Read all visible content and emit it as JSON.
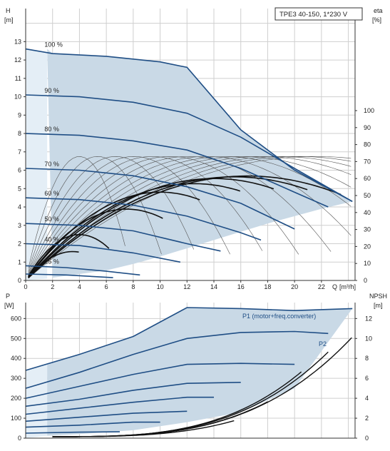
{
  "chart_data": [
    {
      "type": "line",
      "title_box": "TPE3 40-150, 1*230 V",
      "left_axis": {
        "name": "H",
        "unit": "[m]",
        "ticks": [
          0,
          1,
          2,
          3,
          4,
          5,
          6,
          7,
          8,
          9,
          10,
          11,
          12,
          13
        ],
        "range": [
          0,
          14.8
        ]
      },
      "right_axis": {
        "name": "eta",
        "unit": "[%]",
        "ticks": [
          0,
          10,
          20,
          30,
          40,
          50,
          60,
          70,
          80,
          90,
          100
        ],
        "range": [
          0,
          100
        ]
      },
      "x_axis": {
        "name": "Q",
        "unit": "[m³/h]",
        "ticks": [
          0,
          2,
          4,
          6,
          8,
          10,
          12,
          14,
          16,
          18,
          20,
          22
        ],
        "range": [
          0,
          24.5
        ]
      },
      "series": [
        {
          "name": "100 %",
          "points": [
            [
              0,
              12.6
            ],
            [
              2,
              12.35
            ],
            [
              6,
              12.2
            ],
            [
              10,
              11.9
            ],
            [
              12,
              11.6
            ],
            [
              16,
              8.2
            ],
            [
              20,
              6.0
            ],
            [
              24.3,
              4.3
            ]
          ]
        },
        {
          "name": "90 %",
          "points": [
            [
              0,
              10.1
            ],
            [
              4,
              10.0
            ],
            [
              8,
              9.7
            ],
            [
              12,
              9.1
            ],
            [
              16,
              7.8
            ],
            [
              20,
              6.1
            ],
            [
              24.3,
              4.3
            ]
          ]
        },
        {
          "name": "80 %",
          "points": [
            [
              0,
              8.0
            ],
            [
              4,
              7.9
            ],
            [
              8,
              7.6
            ],
            [
              12,
              7.1
            ],
            [
              16,
              6.1
            ],
            [
              20,
              4.8
            ],
            [
              22.5,
              4.0
            ]
          ]
        },
        {
          "name": "70 %",
          "points": [
            [
              0,
              6.1
            ],
            [
              4,
              6.0
            ],
            [
              8,
              5.7
            ],
            [
              12,
              5.1
            ],
            [
              16,
              4.2
            ],
            [
              20,
              2.8
            ]
          ]
        },
        {
          "name": "60 %",
          "points": [
            [
              0,
              4.5
            ],
            [
              4,
              4.4
            ],
            [
              8,
              4.1
            ],
            [
              12,
              3.5
            ],
            [
              16,
              2.6
            ],
            [
              17.5,
              2.2
            ]
          ]
        },
        {
          "name": "50 %",
          "points": [
            [
              0,
              3.1
            ],
            [
              4,
              3.0
            ],
            [
              8,
              2.7
            ],
            [
              12,
              2.0
            ],
            [
              14.5,
              1.6
            ]
          ]
        },
        {
          "name": "40 %",
          "points": [
            [
              0,
              2.0
            ],
            [
              4,
              1.9
            ],
            [
              8,
              1.5
            ],
            [
              11.5,
              1.0
            ]
          ]
        },
        {
          "name": "25 %",
          "points": [
            [
              0,
              0.8
            ],
            [
              3,
              0.7
            ],
            [
              6,
              0.5
            ],
            [
              8.5,
              0.3
            ]
          ]
        },
        {
          "name": "",
          "points": [
            [
              0,
              0.35
            ],
            [
              3,
              0.3
            ],
            [
              6.5,
              0.15
            ]
          ]
        }
      ],
      "region_upper": [
        [
          0,
          12.6
        ],
        [
          2,
          12.35
        ],
        [
          6,
          12.2
        ],
        [
          10,
          11.9
        ],
        [
          12,
          11.6
        ],
        [
          16,
          8.2
        ],
        [
          20,
          6.0
        ],
        [
          24.3,
          4.3
        ]
      ],
      "region_lower": [
        [
          0,
          0
        ],
        [
          2,
          0.15
        ],
        [
          4,
          0.35
        ],
        [
          6,
          0.55
        ],
        [
          8,
          0.9
        ],
        [
          10,
          1.3
        ],
        [
          12,
          1.75
        ],
        [
          14,
          2.2
        ],
        [
          16,
          2.65
        ],
        [
          18,
          3.1
        ],
        [
          20,
          3.5
        ],
        [
          22,
          3.9
        ],
        [
          24.3,
          4.3
        ]
      ],
      "region_left": [
        [
          0,
          0
        ],
        [
          0,
          12.6
        ]
      ],
      "efficiency_curves": [
        {
          "peak_q": 3.5,
          "peak_eta": 17,
          "end_q": 4.0
        },
        {
          "peak_q": 4.0,
          "peak_eta": 27,
          "end_q": 6.2
        },
        {
          "peak_q": 7.5,
          "peak_eta": 42,
          "end_q": 10.2
        },
        {
          "peak_q": 10.0,
          "peak_eta": 52,
          "end_q": 13.0
        },
        {
          "peak_q": 12.5,
          "peak_eta": 57,
          "end_q": 16.0
        },
        {
          "peak_q": 14.0,
          "peak_eta": 60,
          "end_q": 18.5
        },
        {
          "peak_q": 15.5,
          "peak_eta": 61,
          "end_q": 21.0
        },
        {
          "peak_q": 16.5,
          "peak_eta": 61.5,
          "end_q": 23.5
        }
      ]
    },
    {
      "type": "line",
      "left_axis": {
        "name": "P",
        "unit": "[W]",
        "ticks": [
          0,
          100,
          200,
          300,
          400,
          500,
          600
        ],
        "range": [
          0,
          680
        ]
      },
      "right_axis": {
        "name": "NPSH",
        "unit": "[m]",
        "ticks": [
          0,
          2,
          4,
          6,
          8,
          10,
          12
        ],
        "range": [
          0,
          13.6
        ]
      },
      "x_axis": {
        "range": [
          0,
          24.5
        ]
      },
      "series": [
        {
          "name": "P1 (motor+freq.converter)",
          "points": [
            [
              0,
              340
            ],
            [
              4,
              420
            ],
            [
              8,
              510
            ],
            [
              12,
              655
            ],
            [
              16,
              650
            ],
            [
              20,
              640
            ],
            [
              24.3,
              650
            ]
          ]
        },
        {
          "name": "P2",
          "points": [
            [
              0,
              250
            ],
            [
              4,
              330
            ],
            [
              8,
              420
            ],
            [
              12,
              500
            ],
            [
              16,
              530
            ],
            [
              20,
              535
            ],
            [
              22.5,
              525
            ]
          ]
        },
        {
          "name": "",
          "points": [
            [
              0,
              200
            ],
            [
              4,
              260
            ],
            [
              8,
              320
            ],
            [
              12,
              370
            ],
            [
              16,
              375
            ],
            [
              20,
              370
            ]
          ]
        },
        {
          "name": "",
          "points": [
            [
              0,
              160
            ],
            [
              4,
              195
            ],
            [
              8,
              240
            ],
            [
              12,
              275
            ],
            [
              16,
              280
            ]
          ]
        },
        {
          "name": "",
          "points": [
            [
              0,
              120
            ],
            [
              4,
              150
            ],
            [
              8,
              180
            ],
            [
              12,
              205
            ],
            [
              14,
              205
            ]
          ]
        },
        {
          "name": "",
          "points": [
            [
              0,
              85
            ],
            [
              4,
              105
            ],
            [
              8,
              125
            ],
            [
              12,
              135
            ]
          ]
        },
        {
          "name": "",
          "points": [
            [
              0,
              55
            ],
            [
              4,
              65
            ],
            [
              8,
              80
            ],
            [
              10,
              80
            ]
          ]
        },
        {
          "name": "",
          "points": [
            [
              0,
              25
            ],
            [
              4,
              30
            ],
            [
              7,
              32
            ]
          ]
        }
      ],
      "npsh_curves": [
        {
          "start_q": 2,
          "end_q": 12.0,
          "end_npsh": 0.9
        },
        {
          "start_q": 2,
          "end_q": 15.5,
          "end_npsh": 1.6
        },
        {
          "start_q": 2,
          "end_q": 18.0,
          "end_npsh": 3.5
        },
        {
          "start_q": 2,
          "end_q": 20.5,
          "end_npsh": 6.5
        },
        {
          "start_q": 2,
          "end_q": 22.5,
          "end_npsh": 8.5
        },
        {
          "start_q": 2,
          "end_q": 24.3,
          "end_npsh": 10.0
        }
      ]
    }
  ]
}
